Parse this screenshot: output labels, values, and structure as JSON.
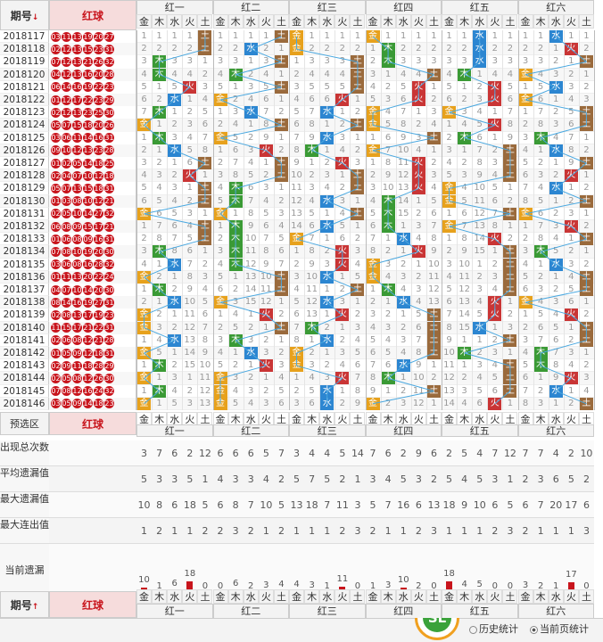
{
  "header": {
    "period_label": "期号",
    "period_arrow": "↓",
    "red_label": "红球"
  },
  "groups": [
    "红一",
    "红二",
    "红三",
    "红四",
    "红五",
    "红六"
  ],
  "elements": [
    "金",
    "木",
    "水",
    "火",
    "土"
  ],
  "periods": [
    "2018117",
    "2018118",
    "2018119",
    "2018120",
    "2018121",
    "2018122",
    "2018123",
    "2018124",
    "2018125",
    "2018126",
    "2018127",
    "2018128",
    "2018129",
    "2018130",
    "2018131",
    "2018132",
    "2018133",
    "2018134",
    "2018135",
    "2018136",
    "2018137",
    "2018138",
    "2018139",
    "2018140",
    "2018141",
    "2018142",
    "2018143",
    "2018144",
    "2018145",
    "2018146"
  ],
  "draws": [
    [
      "03",
      "11",
      "13",
      "19",
      "20",
      "27"
    ],
    [
      "02",
      "12",
      "13",
      "15",
      "23",
      "31"
    ],
    [
      "07",
      "12",
      "13",
      "21",
      "26",
      "32"
    ],
    [
      "04",
      "12",
      "13",
      "16",
      "20",
      "28"
    ],
    [
      "06",
      "14",
      "16",
      "19",
      "22",
      "23"
    ],
    [
      "01",
      "12",
      "17",
      "22",
      "23",
      "29"
    ],
    [
      "02",
      "12",
      "13",
      "23",
      "25",
      "30"
    ],
    [
      "05",
      "07",
      "15",
      "18",
      "20",
      "26"
    ],
    [
      "03",
      "06",
      "11",
      "14",
      "16",
      "31"
    ],
    [
      "09",
      "10",
      "12",
      "13",
      "23",
      "28"
    ],
    [
      "01",
      "02",
      "05",
      "14",
      "18",
      "25"
    ],
    [
      "02",
      "04",
      "07",
      "10",
      "12",
      "18"
    ],
    [
      "05",
      "07",
      "13",
      "15",
      "18",
      "31"
    ],
    [
      "01",
      "03",
      "08",
      "10",
      "12",
      "21"
    ],
    [
      "02",
      "05",
      "10",
      "14",
      "27",
      "32"
    ],
    [
      "06",
      "08",
      "09",
      "15",
      "17",
      "21"
    ],
    [
      "01",
      "06",
      "08",
      "09",
      "16",
      "31"
    ],
    [
      "07",
      "08",
      "10",
      "19",
      "20",
      "30"
    ],
    [
      "03",
      "06",
      "08",
      "16",
      "28",
      "32"
    ],
    [
      "01",
      "11",
      "13",
      "20",
      "22",
      "24"
    ],
    [
      "04",
      "07",
      "10",
      "14",
      "20",
      "30"
    ],
    [
      "08",
      "14",
      "16",
      "19",
      "27",
      "31"
    ],
    [
      "02",
      "08",
      "13",
      "17",
      "19",
      "23"
    ],
    [
      "11",
      "15",
      "17",
      "21",
      "22",
      "31"
    ],
    [
      "02",
      "06",
      "08",
      "12",
      "21",
      "28"
    ],
    [
      "01",
      "05",
      "09",
      "12",
      "18",
      "31"
    ],
    [
      "02",
      "09",
      "11",
      "18",
      "28",
      "29"
    ],
    [
      "02",
      "05",
      "08",
      "12",
      "26",
      "30"
    ],
    [
      "07",
      "08",
      "12",
      "16",
      "24",
      "32"
    ],
    [
      "03",
      "05",
      "09",
      "14",
      "18",
      "23"
    ]
  ],
  "tags": [
    [
      4,
      4,
      0,
      0,
      2,
      2
    ],
    [
      4,
      2,
      0,
      1,
      2,
      3
    ],
    [
      1,
      4,
      4,
      1,
      2,
      4
    ],
    [
      1,
      1,
      4,
      4,
      1,
      0
    ],
    [
      3,
      4,
      4,
      3,
      3,
      2
    ],
    [
      2,
      0,
      3,
      3,
      3,
      0
    ],
    [
      1,
      2,
      2,
      0,
      0,
      4
    ],
    [
      0,
      4,
      4,
      0,
      3,
      4
    ],
    [
      1,
      0,
      2,
      4,
      1,
      1
    ],
    [
      2,
      3,
      1,
      0,
      4,
      2
    ],
    [
      4,
      4,
      3,
      3,
      4,
      4
    ],
    [
      3,
      4,
      4,
      3,
      4,
      3
    ],
    [
      4,
      1,
      4,
      3,
      0,
      2
    ],
    [
      4,
      1,
      2,
      1,
      0,
      4
    ],
    [
      0,
      0,
      4,
      1,
      4,
      0
    ],
    [
      4,
      1,
      2,
      1,
      0,
      3
    ],
    [
      4,
      1,
      0,
      2,
      3,
      4
    ],
    [
      1,
      1,
      3,
      3,
      4,
      1
    ],
    [
      2,
      1,
      3,
      0,
      4,
      2
    ],
    [
      0,
      4,
      2,
      0,
      4,
      4
    ],
    [
      1,
      4,
      4,
      1,
      4,
      4
    ],
    [
      2,
      0,
      2,
      2,
      3,
      0
    ],
    [
      0,
      3,
      3,
      4,
      3,
      3
    ],
    [
      0,
      4,
      1,
      4,
      2,
      4
    ],
    [
      2,
      1,
      2,
      4,
      4,
      4
    ],
    [
      0,
      2,
      0,
      4,
      1,
      1
    ],
    [
      1,
      3,
      0,
      2,
      4,
      1
    ],
    [
      0,
      0,
      3,
      1,
      4,
      3
    ],
    [
      1,
      0,
      2,
      4,
      4,
      2
    ],
    [
      0,
      0,
      2,
      0,
      3,
      4
    ]
  ],
  "preselect_label": "预选区",
  "stats": [
    {
      "label": "出现总次数",
      "values": [
        [
          3,
          7,
          6,
          2,
          12
        ],
        [
          6,
          6,
          6,
          5,
          7
        ],
        [
          3,
          4,
          4,
          5,
          14
        ],
        [
          7,
          6,
          2,
          9,
          6
        ],
        [
          2,
          5,
          4,
          7,
          12
        ],
        [
          7,
          7,
          4,
          2,
          10
        ]
      ]
    },
    {
      "label": "平均遗漏值",
      "values": [
        [
          5,
          3,
          3,
          5,
          1
        ],
        [
          4,
          3,
          3,
          4,
          2
        ],
        [
          5,
          7,
          5,
          2,
          1
        ],
        [
          3,
          4,
          5,
          3,
          2
        ],
        [
          5,
          4,
          5,
          3,
          1
        ],
        [
          2,
          3,
          6,
          5,
          2
        ]
      ]
    },
    {
      "label": "最大遗漏值",
      "values": [
        [
          10,
          8,
          6,
          18,
          5
        ],
        [
          6,
          8,
          7,
          10,
          5
        ],
        [
          13,
          18,
          7,
          11,
          3
        ],
        [
          5,
          7,
          16,
          6,
          13
        ],
        [
          18,
          9,
          10,
          6,
          5
        ],
        [
          6,
          7,
          20,
          17,
          6
        ]
      ]
    },
    {
      "label": "最大连出值",
      "values": [
        [
          1,
          2,
          1,
          1,
          2
        ],
        [
          2,
          3,
          2,
          1,
          2
        ],
        [
          1,
          1,
          1,
          2,
          3
        ],
        [
          2,
          1,
          1,
          2,
          3
        ],
        [
          1,
          1,
          1,
          2,
          3
        ],
        [
          2,
          1,
          1,
          1,
          3
        ]
      ]
    }
  ],
  "current_label": "当前遗漏",
  "current": [
    [
      10,
      1,
      6,
      18,
      0
    ],
    [
      0,
      6,
      2,
      3,
      4
    ],
    [
      4,
      3,
      1,
      11,
      0
    ],
    [
      1,
      3,
      10,
      2,
      0
    ],
    [
      18,
      4,
      5,
      0,
      0
    ],
    [
      3,
      2,
      1,
      17,
      0
    ]
  ],
  "footer": {
    "period_label": "期号",
    "period_arrow": "↑",
    "red_label": "红球",
    "history": "历史统计",
    "current_page": "当前页统计",
    "logo_text": "SL"
  },
  "colors": {
    "jin": "#e7a11c",
    "mu": "#3a9a35",
    "shui": "#2c86d1",
    "huo": "#c93535",
    "tu": "#9a6a3c",
    "red": "#c8141c"
  }
}
